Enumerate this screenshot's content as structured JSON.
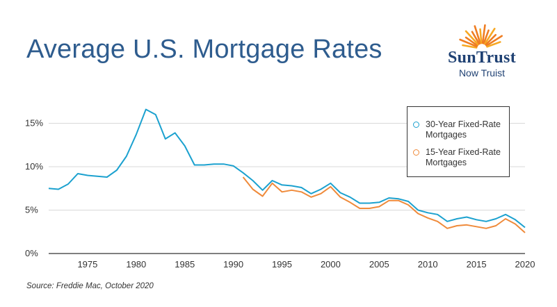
{
  "header": {
    "title": "Average U.S. Mortgage Rates",
    "brand": "SunTrust",
    "brand_sub": "Now Truist"
  },
  "source": "Source: Freddie Mac, October 2020",
  "colors": {
    "series30": "#1ba1cf",
    "series15": "#ef8a3a",
    "grid": "#d9d9d9",
    "axis": "#333333"
  },
  "chart_data": {
    "type": "line",
    "title": "Average U.S. Mortgage Rates",
    "xlabel": "",
    "ylabel": "",
    "xlim": [
      1971,
      2020
    ],
    "ylim": [
      0,
      18
    ],
    "x_ticks": [
      1975,
      1980,
      1985,
      1990,
      1995,
      2000,
      2005,
      2010,
      2015,
      2020
    ],
    "x_tick_labels": [
      "1975",
      "1980",
      "1985",
      "1990",
      "1995",
      "2000",
      "2005",
      "2010",
      "2015",
      "2020"
    ],
    "y_ticks": [
      0,
      5,
      10,
      15
    ],
    "y_tick_labels": [
      "0%",
      "5%",
      "10%",
      "15%"
    ],
    "legend": "top-right",
    "series": [
      {
        "name": "30-Year Fixed-Rate Mortgages",
        "color": "#1ba1cf",
        "points": [
          [
            1971,
            7.5
          ],
          [
            1972,
            7.4
          ],
          [
            1973,
            8.0
          ],
          [
            1974,
            9.2
          ],
          [
            1975,
            9.0
          ],
          [
            1976,
            8.9
          ],
          [
            1977,
            8.8
          ],
          [
            1978,
            9.6
          ],
          [
            1979,
            11.2
          ],
          [
            1980,
            13.7
          ],
          [
            1981,
            16.6
          ],
          [
            1982,
            16.0
          ],
          [
            1983,
            13.2
          ],
          [
            1984,
            13.9
          ],
          [
            1985,
            12.4
          ],
          [
            1986,
            10.2
          ],
          [
            1987,
            10.2
          ],
          [
            1988,
            10.3
          ],
          [
            1989,
            10.3
          ],
          [
            1990,
            10.1
          ],
          [
            1991,
            9.3
          ],
          [
            1992,
            8.4
          ],
          [
            1993,
            7.3
          ],
          [
            1994,
            8.4
          ],
          [
            1995,
            7.9
          ],
          [
            1996,
            7.8
          ],
          [
            1997,
            7.6
          ],
          [
            1998,
            6.9
          ],
          [
            1999,
            7.4
          ],
          [
            2000,
            8.1
          ],
          [
            2001,
            7.0
          ],
          [
            2002,
            6.5
          ],
          [
            2003,
            5.8
          ],
          [
            2004,
            5.8
          ],
          [
            2005,
            5.9
          ],
          [
            2006,
            6.4
          ],
          [
            2007,
            6.3
          ],
          [
            2008,
            6.0
          ],
          [
            2009,
            5.0
          ],
          [
            2010,
            4.7
          ],
          [
            2011,
            4.5
          ],
          [
            2012,
            3.7
          ],
          [
            2013,
            4.0
          ],
          [
            2014,
            4.2
          ],
          [
            2015,
            3.9
          ],
          [
            2016,
            3.7
          ],
          [
            2017,
            4.0
          ],
          [
            2018,
            4.5
          ],
          [
            2019,
            3.9
          ],
          [
            2020,
            3.0
          ]
        ]
      },
      {
        "name": "15-Year Fixed-Rate Mortgages",
        "color": "#ef8a3a",
        "points": [
          [
            1991,
            8.8
          ],
          [
            1992,
            7.4
          ],
          [
            1993,
            6.6
          ],
          [
            1994,
            8.1
          ],
          [
            1995,
            7.1
          ],
          [
            1996,
            7.3
          ],
          [
            1997,
            7.1
          ],
          [
            1998,
            6.5
          ],
          [
            1999,
            6.9
          ],
          [
            2000,
            7.7
          ],
          [
            2001,
            6.5
          ],
          [
            2002,
            5.9
          ],
          [
            2003,
            5.2
          ],
          [
            2004,
            5.2
          ],
          [
            2005,
            5.4
          ],
          [
            2006,
            6.1
          ],
          [
            2007,
            6.1
          ],
          [
            2008,
            5.6
          ],
          [
            2009,
            4.6
          ],
          [
            2010,
            4.1
          ],
          [
            2011,
            3.7
          ],
          [
            2012,
            2.9
          ],
          [
            2013,
            3.2
          ],
          [
            2014,
            3.3
          ],
          [
            2015,
            3.1
          ],
          [
            2016,
            2.9
          ],
          [
            2017,
            3.2
          ],
          [
            2018,
            4.0
          ],
          [
            2019,
            3.4
          ],
          [
            2020,
            2.4
          ]
        ]
      }
    ]
  }
}
